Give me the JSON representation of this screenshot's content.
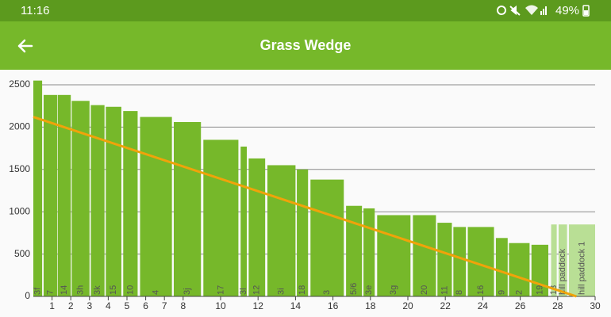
{
  "status_bar": {
    "time": "11:16",
    "battery": "49%"
  },
  "app_bar": {
    "title": "Grass Wedge"
  },
  "chart_data": {
    "type": "bar",
    "labels": [
      "3f",
      "7",
      "14",
      "3h",
      "3k",
      "15",
      "10",
      "4",
      "3j",
      "17",
      "3l",
      "12",
      "3i",
      "18",
      "3",
      "5/6",
      "3e",
      "3g",
      "20",
      "11",
      "8",
      "16",
      "9",
      "2",
      "19",
      "13",
      "hill paddock",
      "hill paddock 1"
    ],
    "x_start": [
      0,
      0.55,
      1.3,
      2.05,
      3.07,
      3.87,
      4.8,
      5.7,
      7.5,
      9.08,
      11.07,
      11.5,
      12.5,
      14.07,
      14.8,
      16.7,
      17.63,
      18.36,
      20.27,
      21.58,
      22.43,
      23.2,
      24.7,
      25.4,
      26.6,
      27.65,
      28.05,
      28.6
    ],
    "x_end": [
      0.47,
      1.27,
      2.0,
      3.0,
      3.8,
      4.7,
      5.57,
      7.4,
      8.95,
      10.95,
      11.4,
      12.38,
      14.0,
      14.67,
      16.58,
      17.55,
      18.23,
      20.14,
      21.5,
      22.35,
      23.1,
      24.6,
      25.33,
      26.5,
      27.5,
      27.95,
      28.5,
      30
    ],
    "values": [
      2550,
      2380,
      2380,
      2310,
      2260,
      2240,
      2190,
      2120,
      2060,
      1850,
      1770,
      1630,
      1550,
      1500,
      1380,
      1070,
      1040,
      960,
      960,
      870,
      820,
      820,
      690,
      630,
      610,
      850,
      850,
      850
    ],
    "colors": [
      "#76b82a",
      "#76b82a",
      "#76b82a",
      "#76b82a",
      "#76b82a",
      "#76b82a",
      "#76b82a",
      "#76b82a",
      "#76b82a",
      "#76b82a",
      "#76b82a",
      "#76b82a",
      "#76b82a",
      "#76b82a",
      "#76b82a",
      "#76b82a",
      "#76b82a",
      "#76b82a",
      "#76b82a",
      "#76b82a",
      "#76b82a",
      "#76b82a",
      "#76b82a",
      "#76b82a",
      "#76b82a",
      "#b9df95",
      "#b9df95",
      "#b9df95"
    ],
    "target_line": {
      "x": [
        0,
        29
      ],
      "values": [
        2120,
        0
      ],
      "color": "#f0a30a"
    },
    "xlim": [
      0,
      30
    ],
    "xticks": [
      1,
      2,
      3,
      4,
      5,
      6,
      7,
      8,
      10,
      12,
      14,
      16,
      18,
      20,
      22,
      24,
      26,
      28,
      30
    ],
    "ylim": [
      0,
      2500
    ],
    "yticks": [
      0,
      500,
      1000,
      1500,
      2000,
      2500
    ],
    "grid": true
  }
}
